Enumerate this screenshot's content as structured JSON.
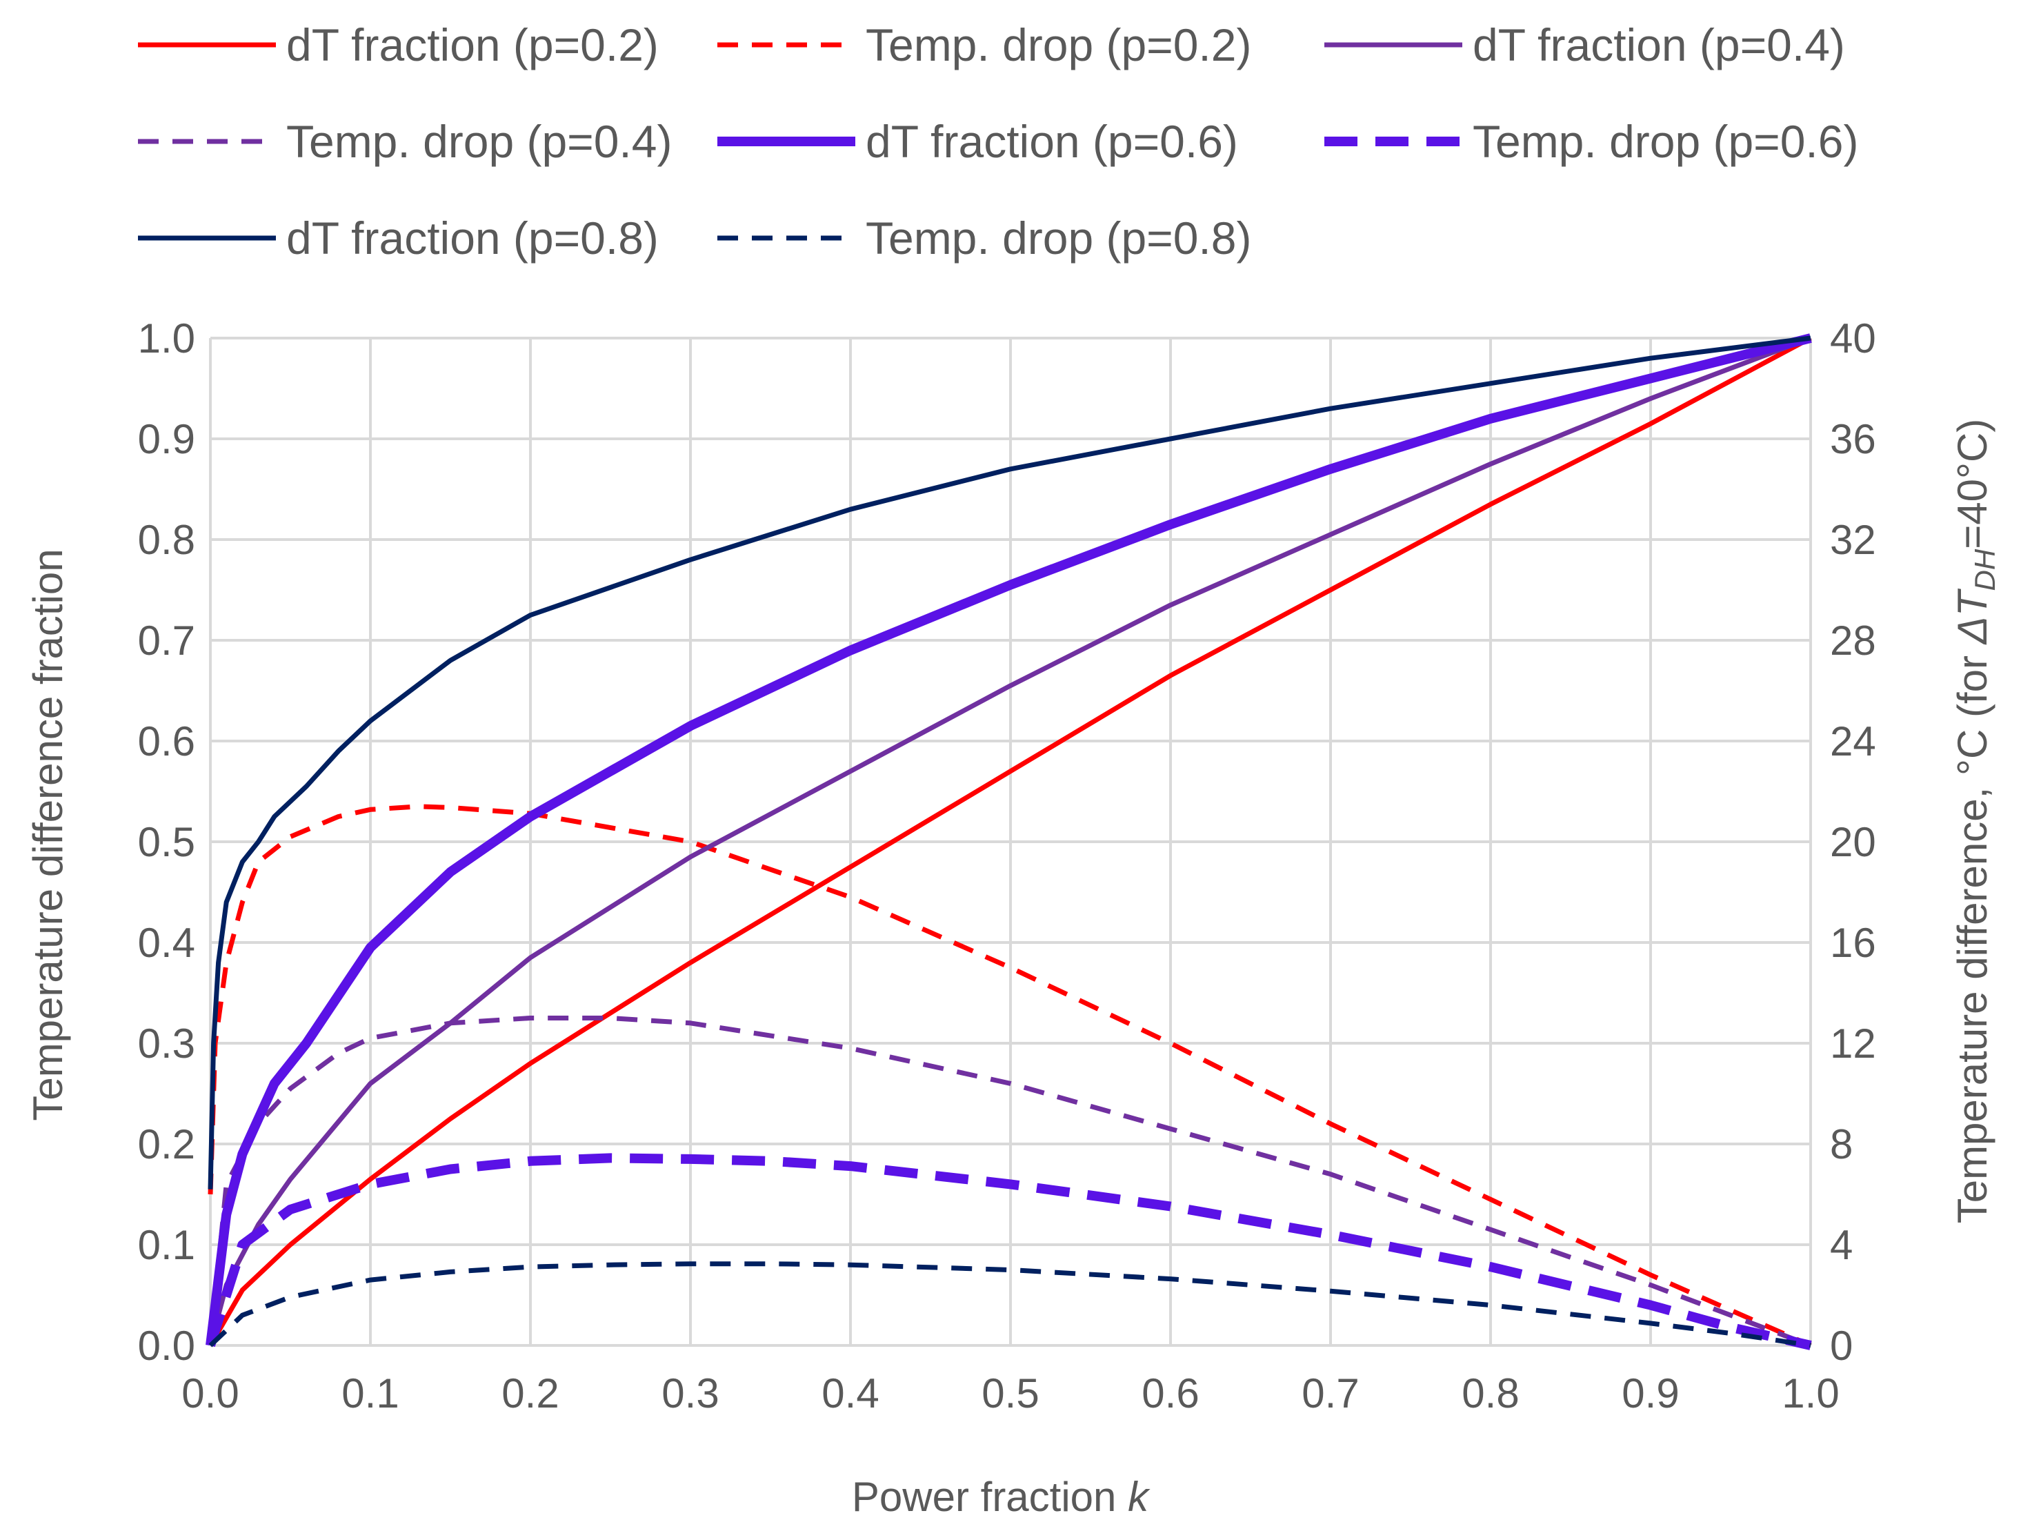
{
  "chart_data": {
    "type": "line",
    "title": "",
    "xlabel": "Power fraction",
    "xlabel_var": "k",
    "ylabel": "Temperature difference fraction",
    "y2label_prefix": "Temperature difference, °C (for ",
    "y2label_var": "ΔT",
    "y2label_sub": "DH",
    "y2label_suffix": "=40°C)",
    "xlim": [
      0,
      1
    ],
    "ylim": [
      0,
      1
    ],
    "y2lim": [
      0,
      40
    ],
    "grid": true,
    "legend_position": "top",
    "x_ticks": [
      "0.0",
      "0.1",
      "0.2",
      "0.3",
      "0.4",
      "0.5",
      "0.6",
      "0.7",
      "0.8",
      "0.9",
      "1.0"
    ],
    "y_ticks": [
      "0.0",
      "0.1",
      "0.2",
      "0.3",
      "0.4",
      "0.5",
      "0.6",
      "0.7",
      "0.8",
      "0.9",
      "1.0"
    ],
    "y2_ticks": [
      "0",
      "4",
      "8",
      "12",
      "16",
      "20",
      "24",
      "28",
      "32",
      "36",
      "40"
    ],
    "series": [
      {
        "name": "dT fraction (p=0.2)",
        "color": "#ff0000",
        "dash": "solid",
        "weight": "normal",
        "x": [
          0,
          0.02,
          0.05,
          0.1,
          0.15,
          0.2,
          0.3,
          0.4,
          0.5,
          0.6,
          0.7,
          0.8,
          0.9,
          1.0
        ],
        "y": [
          0,
          0.055,
          0.1,
          0.165,
          0.225,
          0.28,
          0.38,
          0.475,
          0.57,
          0.665,
          0.75,
          0.835,
          0.915,
          1.0
        ]
      },
      {
        "name": "Temp. drop (p=0.2)",
        "color": "#ff0000",
        "dash": "dashed",
        "weight": "normal",
        "x": [
          0,
          0.003,
          0.01,
          0.02,
          0.03,
          0.05,
          0.08,
          0.1,
          0.13,
          0.15,
          0.2,
          0.3,
          0.4,
          0.5,
          0.6,
          0.7,
          0.8,
          0.9,
          0.95,
          1.0
        ],
        "y": [
          0.15,
          0.3,
          0.38,
          0.44,
          0.48,
          0.505,
          0.525,
          0.532,
          0.535,
          0.534,
          0.528,
          0.5,
          0.445,
          0.375,
          0.3,
          0.22,
          0.145,
          0.07,
          0.035,
          0
        ]
      },
      {
        "name": "dT fraction (p=0.4)",
        "color": "#7030a0",
        "dash": "solid",
        "weight": "normal",
        "x": [
          0,
          0.01,
          0.03,
          0.05,
          0.1,
          0.15,
          0.2,
          0.3,
          0.4,
          0.5,
          0.6,
          0.7,
          0.8,
          0.9,
          1.0
        ],
        "y": [
          0,
          0.06,
          0.12,
          0.165,
          0.26,
          0.32,
          0.385,
          0.485,
          0.57,
          0.655,
          0.735,
          0.805,
          0.875,
          0.94,
          1.0
        ]
      },
      {
        "name": "Temp. drop (p=0.4)",
        "color": "#7030a0",
        "dash": "dashed",
        "weight": "normal",
        "x": [
          0,
          0.01,
          0.03,
          0.05,
          0.08,
          0.1,
          0.15,
          0.2,
          0.25,
          0.3,
          0.4,
          0.5,
          0.6,
          0.7,
          0.8,
          0.9,
          0.95,
          1.0
        ],
        "y": [
          0,
          0.16,
          0.22,
          0.255,
          0.29,
          0.305,
          0.32,
          0.325,
          0.325,
          0.32,
          0.295,
          0.26,
          0.215,
          0.17,
          0.115,
          0.06,
          0.03,
          0
        ]
      },
      {
        "name": "dT fraction (p=0.6)",
        "color": "#5a12e6",
        "dash": "solid",
        "weight": "heavy",
        "x": [
          0,
          0.01,
          0.02,
          0.04,
          0.06,
          0.1,
          0.15,
          0.2,
          0.3,
          0.4,
          0.5,
          0.6,
          0.7,
          0.8,
          0.9,
          1.0
        ],
        "y": [
          0,
          0.13,
          0.19,
          0.26,
          0.3,
          0.395,
          0.47,
          0.525,
          0.615,
          0.69,
          0.755,
          0.815,
          0.87,
          0.92,
          0.96,
          1.0
        ]
      },
      {
        "name": "Temp. drop (p=0.6)",
        "color": "#5a12e6",
        "dash": "dashed",
        "weight": "heavy",
        "x": [
          0,
          0.02,
          0.05,
          0.1,
          0.15,
          0.2,
          0.25,
          0.3,
          0.35,
          0.4,
          0.5,
          0.6,
          0.7,
          0.8,
          0.9,
          0.95,
          1.0
        ],
        "y": [
          0,
          0.1,
          0.135,
          0.16,
          0.175,
          0.183,
          0.186,
          0.185,
          0.183,
          0.178,
          0.16,
          0.138,
          0.11,
          0.078,
          0.04,
          0.018,
          0
        ]
      },
      {
        "name": "dT fraction (p=0.8)",
        "color": "#002060",
        "dash": "solid",
        "weight": "normal",
        "x": [
          0,
          0.002,
          0.005,
          0.01,
          0.02,
          0.03,
          0.04,
          0.06,
          0.08,
          0.1,
          0.15,
          0.2,
          0.3,
          0.4,
          0.5,
          0.6,
          0.7,
          0.8,
          0.9,
          1.0
        ],
        "y": [
          0.155,
          0.3,
          0.38,
          0.44,
          0.48,
          0.5,
          0.525,
          0.555,
          0.59,
          0.62,
          0.68,
          0.725,
          0.78,
          0.83,
          0.87,
          0.9,
          0.93,
          0.955,
          0.98,
          1.0
        ]
      },
      {
        "name": "Temp. drop (p=0.8)",
        "color": "#002060",
        "dash": "dashed",
        "weight": "normal",
        "x": [
          0,
          0.02,
          0.05,
          0.1,
          0.15,
          0.2,
          0.25,
          0.3,
          0.35,
          0.4,
          0.5,
          0.6,
          0.7,
          0.8,
          0.9,
          0.95,
          1.0
        ],
        "y": [
          0,
          0.03,
          0.048,
          0.065,
          0.073,
          0.078,
          0.08,
          0.081,
          0.081,
          0.08,
          0.075,
          0.066,
          0.054,
          0.04,
          0.022,
          0.012,
          0
        ]
      }
    ]
  }
}
